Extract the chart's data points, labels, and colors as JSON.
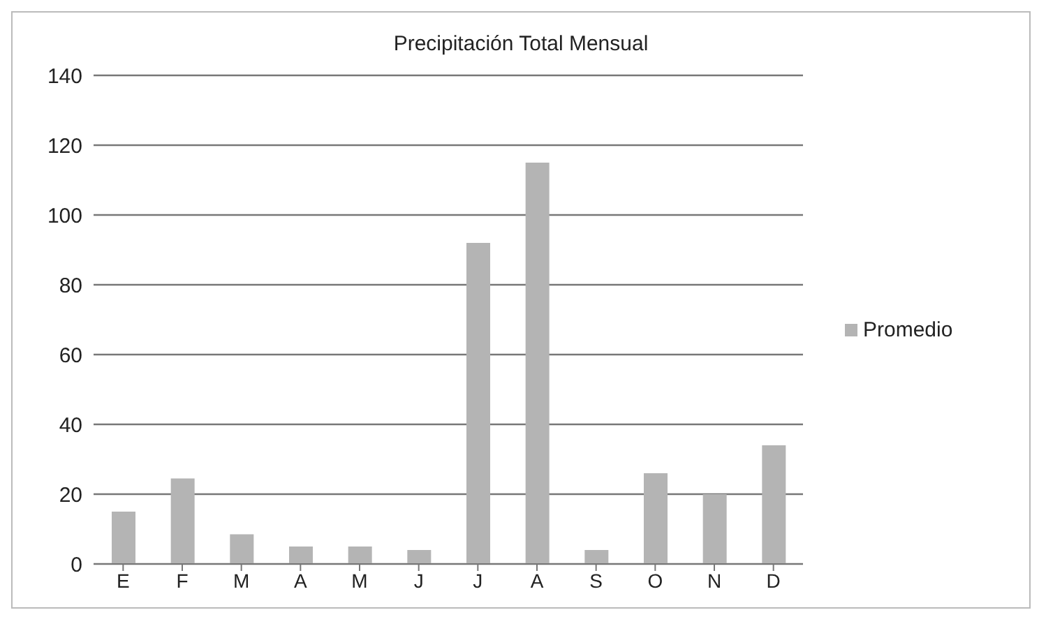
{
  "chart_data": {
    "type": "bar",
    "title": "Precipitación Total Mensual",
    "categories": [
      "E",
      "F",
      "M",
      "A",
      "M",
      "J",
      "J",
      "A",
      "S",
      "O",
      "N",
      "D"
    ],
    "series": [
      {
        "name": "Promedio",
        "color": "#b4b4b4",
        "values": [
          15,
          24.5,
          8.5,
          5,
          5,
          4,
          92,
          115,
          4,
          26,
          20,
          34
        ]
      }
    ],
    "ylim": [
      0,
      140
    ],
    "yticks": [
      0,
      20,
      40,
      60,
      80,
      100,
      120,
      140
    ],
    "grid": "y",
    "legend": "right"
  }
}
